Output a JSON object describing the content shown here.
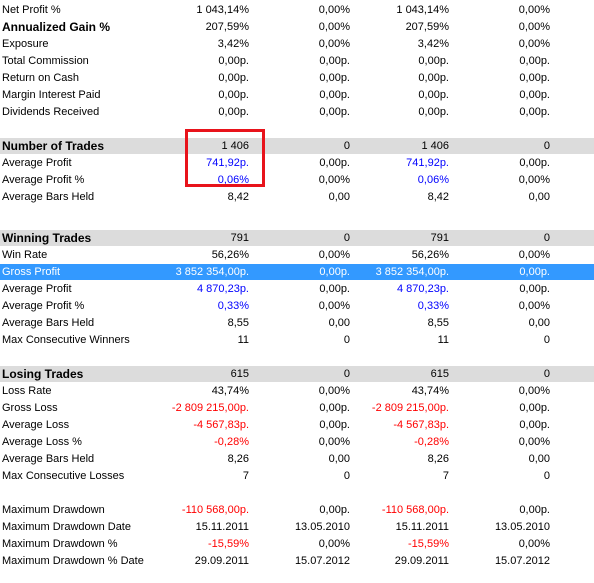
{
  "rows": [
    {
      "label": "Net Profit %",
      "values": [
        "1 043,14%",
        "0,00%",
        "1 043,14%",
        "0,00%"
      ],
      "kind": "normal"
    },
    {
      "label": "Annualized Gain %",
      "values": [
        "207,59%",
        "0,00%",
        "207,59%",
        "0,00%"
      ],
      "kind": "bold"
    },
    {
      "label": "Exposure",
      "values": [
        "3,42%",
        "0,00%",
        "3,42%",
        "0,00%"
      ],
      "kind": "normal"
    },
    {
      "label": "Total Commission",
      "values": [
        "0,00p.",
        "0,00p.",
        "0,00p.",
        "0,00p."
      ],
      "kind": "normal"
    },
    {
      "label": "Return on Cash",
      "values": [
        "0,00p.",
        "0,00p.",
        "0,00p.",
        "0,00p."
      ],
      "kind": "normal"
    },
    {
      "label": "Margin Interest Paid",
      "values": [
        "0,00p.",
        "0,00p.",
        "0,00p.",
        "0,00p."
      ],
      "kind": "normal"
    },
    {
      "label": "Dividends Received",
      "values": [
        "0,00p.",
        "0,00p.",
        "0,00p.",
        "0,00p."
      ],
      "kind": "normal"
    },
    {
      "label": "Number of Trades",
      "values": [
        "1 406",
        "0",
        "1 406",
        "0"
      ],
      "kind": "section"
    },
    {
      "label": "Average Profit",
      "values": [
        "741,92p.",
        "0,00p.",
        "741,92p.",
        "0,00p."
      ],
      "kind": "normal",
      "colors": [
        "blue",
        "",
        "blue",
        ""
      ]
    },
    {
      "label": "Average Profit %",
      "values": [
        "0,06%",
        "0,00%",
        "0,06%",
        "0,00%"
      ],
      "kind": "normal",
      "colors": [
        "blue",
        "",
        "blue",
        ""
      ]
    },
    {
      "label": "Average Bars Held",
      "values": [
        "8,42",
        "0,00",
        "8,42",
        "0,00"
      ],
      "kind": "normal"
    },
    {
      "label": "Winning Trades",
      "values": [
        "791",
        "0",
        "791",
        "0"
      ],
      "kind": "section"
    },
    {
      "label": "Win Rate",
      "values": [
        "56,26%",
        "0,00%",
        "56,26%",
        "0,00%"
      ],
      "kind": "normal"
    },
    {
      "label": "Gross Profit",
      "values": [
        "3 852 354,00p.",
        "0,00p.",
        "3 852 354,00p.",
        "0,00p."
      ],
      "kind": "selected"
    },
    {
      "label": "Average Profit",
      "values": [
        "4 870,23p.",
        "0,00p.",
        "4 870,23p.",
        "0,00p."
      ],
      "kind": "normal",
      "colors": [
        "blue",
        "",
        "blue",
        ""
      ]
    },
    {
      "label": "Average Profit %",
      "values": [
        "0,33%",
        "0,00%",
        "0,33%",
        "0,00%"
      ],
      "kind": "normal",
      "colors": [
        "blue",
        "",
        "blue",
        ""
      ]
    },
    {
      "label": "Average Bars Held",
      "values": [
        "8,55",
        "0,00",
        "8,55",
        "0,00"
      ],
      "kind": "normal"
    },
    {
      "label": "Max Consecutive Winners",
      "values": [
        "11",
        "0",
        "11",
        "0"
      ],
      "kind": "normal"
    },
    {
      "label": "Losing Trades",
      "values": [
        "615",
        "0",
        "615",
        "0"
      ],
      "kind": "section"
    },
    {
      "label": "Loss Rate",
      "values": [
        "43,74%",
        "0,00%",
        "43,74%",
        "0,00%"
      ],
      "kind": "normal"
    },
    {
      "label": "Gross Loss",
      "values": [
        "-2 809 215,00p.",
        "0,00p.",
        "-2 809 215,00p.",
        "0,00p."
      ],
      "kind": "normal",
      "colors": [
        "red",
        "",
        "red",
        ""
      ]
    },
    {
      "label": "Average Loss",
      "values": [
        "-4 567,83p.",
        "0,00p.",
        "-4 567,83p.",
        "0,00p."
      ],
      "kind": "normal",
      "colors": [
        "red",
        "",
        "red",
        ""
      ]
    },
    {
      "label": "Average Loss %",
      "values": [
        "-0,28%",
        "0,00%",
        "-0,28%",
        "0,00%"
      ],
      "kind": "normal",
      "colors": [
        "red",
        "",
        "red",
        ""
      ]
    },
    {
      "label": "Average Bars Held",
      "values": [
        "8,26",
        "0,00",
        "8,26",
        "0,00"
      ],
      "kind": "normal"
    },
    {
      "label": "Max Consecutive Losses",
      "values": [
        "7",
        "0",
        "7",
        "0"
      ],
      "kind": "normal"
    },
    {
      "label": "Maximum Drawdown",
      "values": [
        "-110 568,00p.",
        "0,00p.",
        "-110 568,00p.",
        "0,00p."
      ],
      "kind": "normal",
      "colors": [
        "red",
        "",
        "red",
        ""
      ]
    },
    {
      "label": "Maximum Drawdown Date",
      "values": [
        "15.11.2011",
        "13.05.2010",
        "15.11.2011",
        "13.05.2010"
      ],
      "kind": "normal"
    },
    {
      "label": "Maximum Drawdown %",
      "values": [
        "-15,59%",
        "0,00%",
        "-15,59%",
        "0,00%"
      ],
      "kind": "normal",
      "colors": [
        "red",
        "",
        "red",
        ""
      ]
    },
    {
      "label": "Maximum Drawdown % Date",
      "values": [
        "29.09.2011",
        "15.07.2012",
        "29.09.2011",
        "15.07.2012"
      ],
      "kind": "normal"
    }
  ],
  "colors": {
    "section_bg": "#dcdcdc",
    "selected_bg": "#3399ff",
    "positive_accent": "#0000ff",
    "negative_accent": "#ff0000",
    "highlight_box": "#e8131b"
  }
}
